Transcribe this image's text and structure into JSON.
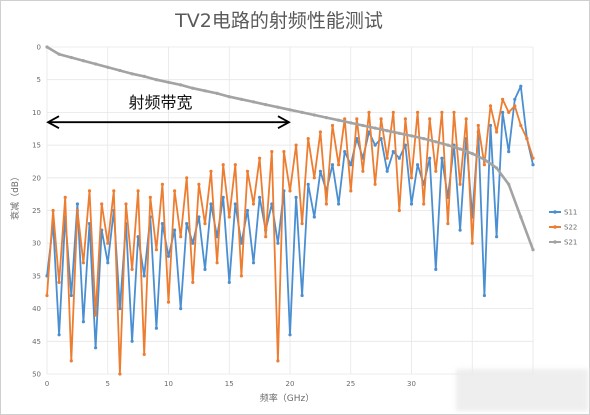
{
  "colors": {
    "s11": "#4a8fd1",
    "s22": "#ed7d31",
    "s21": "#a3a3a3",
    "grid": "#e6e6e6",
    "text": "#595959",
    "annotation": "#000000"
  },
  "chart_data": {
    "type": "line",
    "title": "TV2电路的射频性能测试",
    "xlabel": "频率（GHz）",
    "ylabel": "衰减（dB）",
    "xlim": [
      0,
      40
    ],
    "ylim": [
      0,
      50
    ],
    "y_inverted": true,
    "x_ticks": [
      "0",
      "5",
      "10",
      "15",
      "20",
      "25",
      "30"
    ],
    "y_ticks": [
      "0",
      "5",
      "10",
      "15",
      "20",
      "25",
      "30",
      "35",
      "40",
      "45",
      "50"
    ],
    "grid": true,
    "legend_position": "right",
    "annotation": {
      "text": "射频带宽",
      "x_start": 0,
      "x_end": 20,
      "y": 11.5
    },
    "series": [
      {
        "name": "S11",
        "color_key": "s11",
        "x": [
          0,
          0.5,
          1,
          1.5,
          2,
          2.5,
          3,
          3.5,
          4,
          4.5,
          5,
          5.5,
          6,
          6.5,
          7,
          7.5,
          8,
          8.5,
          9,
          9.5,
          10,
          10.5,
          11,
          11.5,
          12,
          12.5,
          13,
          13.5,
          14,
          14.5,
          15,
          15.5,
          16,
          16.5,
          17,
          17.5,
          18,
          18.5,
          19,
          19.5,
          20,
          20.5,
          21,
          21.5,
          22,
          22.5,
          23,
          23.5,
          24,
          24.5,
          25,
          25.5,
          26,
          26.5,
          27,
          27.5,
          28,
          28.5,
          29,
          29.5,
          30,
          30.5,
          31,
          31.5,
          32,
          32.5,
          33,
          33.5,
          34,
          34.5,
          35,
          35.5,
          36,
          36.5,
          37,
          37.5,
          38,
          38.5,
          39,
          39.5,
          40
        ],
        "y": [
          35,
          27,
          44,
          26,
          38,
          24,
          42,
          27,
          46,
          28,
          33,
          25,
          40,
          27,
          45,
          29,
          35,
          26,
          43,
          27,
          32,
          28,
          40,
          27,
          30,
          26,
          34,
          24,
          29,
          23,
          36,
          24,
          30,
          25,
          33,
          23,
          28,
          24,
          30,
          22,
          44,
          23,
          38,
          21,
          26,
          19,
          22,
          18,
          24,
          16,
          18,
          14,
          17,
          13,
          15,
          14,
          19,
          16,
          17,
          15,
          24,
          18,
          21,
          17,
          34,
          17,
          23,
          15,
          28,
          14,
          26,
          13,
          38,
          12,
          29,
          10,
          16,
          8,
          6,
          14,
          18
        ]
      },
      {
        "name": "S22",
        "color_key": "s22",
        "x": [
          0,
          0.5,
          1,
          1.5,
          2,
          2.5,
          3,
          3.5,
          4,
          4.5,
          5,
          5.5,
          6,
          6.5,
          7,
          7.5,
          8,
          8.5,
          9,
          9.5,
          10,
          10.5,
          11,
          11.5,
          12,
          12.5,
          13,
          13.5,
          14,
          14.5,
          15,
          15.5,
          16,
          16.5,
          17,
          17.5,
          18,
          18.5,
          19,
          19.5,
          20,
          20.5,
          21,
          21.5,
          22,
          22.5,
          23,
          23.5,
          24,
          24.5,
          25,
          25.5,
          26,
          26.5,
          27,
          27.5,
          28,
          28.5,
          29,
          29.5,
          30,
          30.5,
          31,
          31.5,
          32,
          32.5,
          33,
          33.5,
          34,
          34.5,
          35,
          35.5,
          36,
          36.5,
          37,
          37.5,
          38,
          38.5,
          39,
          39.5,
          40
        ],
        "y": [
          38,
          25,
          36,
          23,
          48,
          25,
          33,
          22,
          41,
          24,
          30,
          22,
          50,
          24,
          34,
          22,
          47,
          23,
          31,
          21,
          39,
          22,
          29,
          20,
          36,
          21,
          27,
          19,
          33,
          18,
          26,
          18,
          35,
          19,
          24,
          17,
          29,
          16,
          48,
          16,
          22,
          15,
          27,
          14,
          20,
          13,
          24,
          12,
          18,
          11,
          22,
          11,
          19,
          10,
          21,
          11,
          17,
          10,
          25,
          11,
          20,
          10,
          24,
          11,
          19,
          10,
          27,
          10,
          21,
          11,
          30,
          12,
          18,
          9,
          13,
          8,
          10,
          9,
          12,
          14,
          17
        ]
      },
      {
        "name": "S21",
        "color_key": "s21",
        "x": [
          0,
          1,
          2,
          3,
          4,
          5,
          6,
          7,
          8,
          9,
          10,
          11,
          12,
          13,
          14,
          15,
          16,
          17,
          18,
          19,
          20,
          21,
          22,
          23,
          24,
          25,
          26,
          27,
          28,
          29,
          30,
          31,
          32,
          33,
          34,
          35,
          36,
          37,
          38,
          39,
          40
        ],
        "y": [
          0,
          1.1,
          1.6,
          2.1,
          2.6,
          3.1,
          3.6,
          4.1,
          4.5,
          5.0,
          5.4,
          5.8,
          6.3,
          6.7,
          7.1,
          7.6,
          8.0,
          8.4,
          8.8,
          9.2,
          9.6,
          10.0,
          10.4,
          10.8,
          11.2,
          11.6,
          12.0,
          12.4,
          12.8,
          13.2,
          13.6,
          14.0,
          14.5,
          15.0,
          15.6,
          16.3,
          17.2,
          18.5,
          21.0,
          26.0,
          31.0
        ]
      }
    ]
  }
}
